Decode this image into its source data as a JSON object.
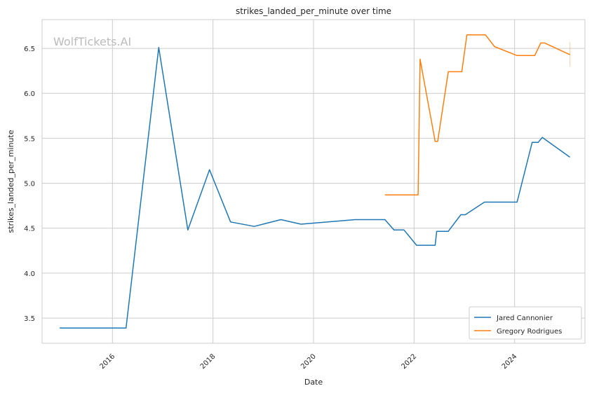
{
  "chart_data": {
    "type": "line",
    "title": "strikes_landed_per_minute over time",
    "xlabel": "Date",
    "ylabel": "strikes_landed_per_minute",
    "watermark": "WolfTickets.AI",
    "xlim": [
      2014.6,
      2025.4
    ],
    "ylim": [
      3.22,
      6.82
    ],
    "x_ticks": [
      2016,
      2018,
      2020,
      2022,
      2024
    ],
    "y_ticks": [
      3.5,
      4.0,
      4.5,
      5.0,
      5.5,
      6.0,
      6.5
    ],
    "grid": true,
    "legend_position": "lower-right",
    "series": [
      {
        "name": "Jared Cannonier",
        "color": "#1f77b4",
        "points": [
          [
            2014.95,
            3.39
          ],
          [
            2016.27,
            3.39
          ],
          [
            2016.92,
            6.51
          ],
          [
            2017.5,
            4.48
          ],
          [
            2017.93,
            5.15
          ],
          [
            2018.35,
            4.57
          ],
          [
            2018.82,
            4.52
          ],
          [
            2019.35,
            4.595
          ],
          [
            2019.75,
            4.545
          ],
          [
            2020.83,
            4.595
          ],
          [
            2021.42,
            4.595
          ],
          [
            2021.6,
            4.48
          ],
          [
            2021.8,
            4.48
          ],
          [
            2022.05,
            4.31
          ],
          [
            2022.42,
            4.31
          ],
          [
            2022.45,
            4.465
          ],
          [
            2022.68,
            4.465
          ],
          [
            2022.93,
            4.65
          ],
          [
            2023.02,
            4.65
          ],
          [
            2023.4,
            4.79
          ],
          [
            2024.05,
            4.79
          ],
          [
            2024.35,
            5.455
          ],
          [
            2024.47,
            5.455
          ],
          [
            2024.55,
            5.51
          ],
          [
            2025.1,
            5.29
          ]
        ]
      },
      {
        "name": "Gregory Rodrigues",
        "color": "#ff7f0e",
        "points": [
          [
            2021.42,
            4.87
          ],
          [
            2022.08,
            4.87
          ],
          [
            2022.12,
            6.38
          ],
          [
            2022.42,
            5.465
          ],
          [
            2022.47,
            5.465
          ],
          [
            2022.68,
            6.24
          ],
          [
            2022.95,
            6.24
          ],
          [
            2023.05,
            6.65
          ],
          [
            2023.42,
            6.65
          ],
          [
            2023.6,
            6.52
          ],
          [
            2024.05,
            6.42
          ],
          [
            2024.4,
            6.42
          ],
          [
            2024.52,
            6.56
          ],
          [
            2024.6,
            6.56
          ],
          [
            2025.1,
            6.43
          ]
        ],
        "error_bar": {
          "x": 2025.1,
          "low": 6.3,
          "high": 6.57
        }
      }
    ]
  }
}
